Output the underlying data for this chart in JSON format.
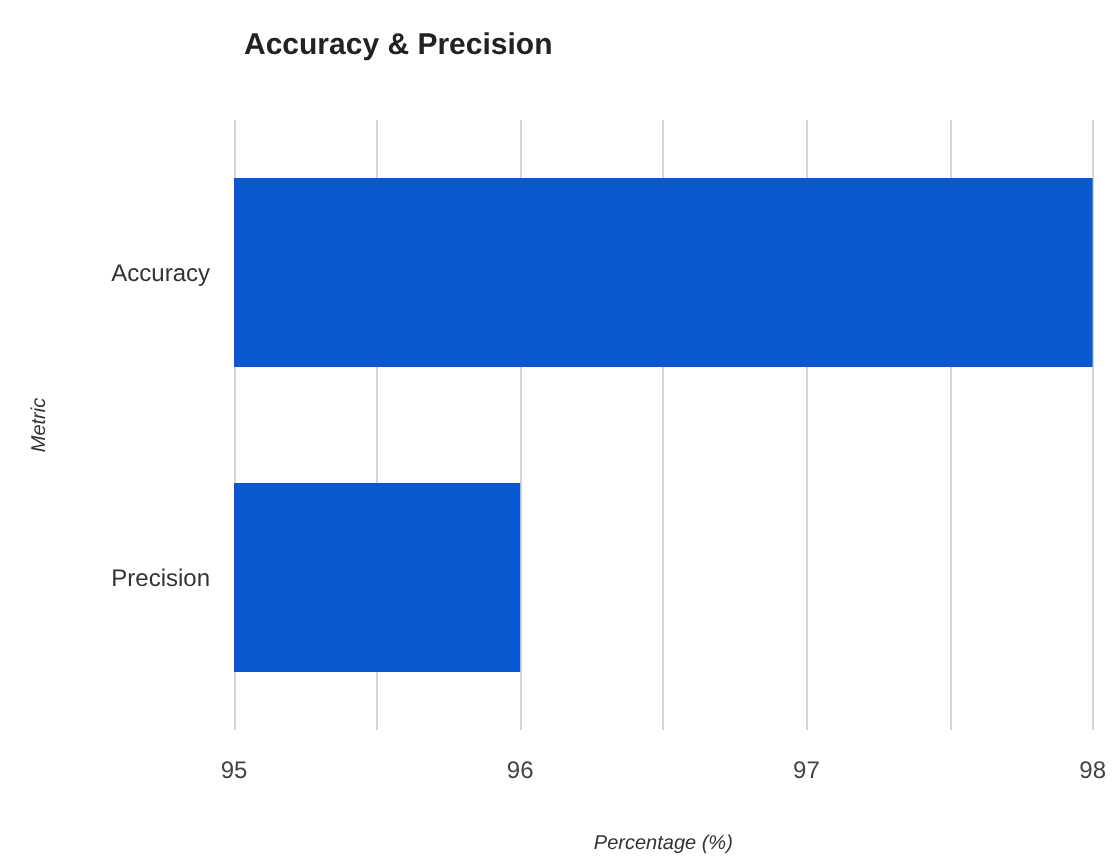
{
  "chart_data": {
    "type": "bar",
    "orientation": "horizontal",
    "title": "Accuracy & Precision",
    "xlabel": "Percentage (%)",
    "ylabel": "Metric",
    "categories": [
      "Accuracy",
      "Precision"
    ],
    "values": [
      98,
      96
    ],
    "color": "#0b57d0",
    "xlim": [
      95,
      98
    ],
    "xticks": [
      95,
      {
        "value": 95.5,
        "label": null
      },
      96,
      {
        "value": 96.5,
        "label": null
      },
      97,
      {
        "value": 97.5,
        "label": null
      },
      98
    ],
    "grid": "x"
  }
}
